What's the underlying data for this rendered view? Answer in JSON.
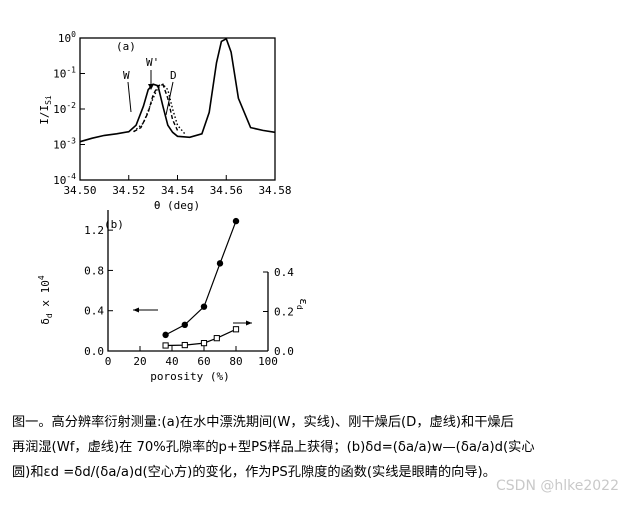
{
  "chart_data": [
    {
      "type": "line",
      "panel_label": "(a)",
      "xlabel": "θ (deg)",
      "ylabel": "I/I_Si",
      "ylabel_main": "I/I",
      "ylabel_sub": "Si",
      "y_scale": "log",
      "xlim": [
        34.5,
        34.58
      ],
      "ylim": [
        0.0001,
        1
      ],
      "x_ticks": [
        "34.50",
        "34.52",
        "34.54",
        "34.56",
        "34.58"
      ],
      "x_tick_values": [
        34.5,
        34.52,
        34.54,
        34.56,
        34.58
      ],
      "y_ticks": [
        {
          "base": "10",
          "exp": "0",
          "value": 1
        },
        {
          "base": "10",
          "exp": "-1",
          "value": 0.1
        },
        {
          "base": "10",
          "exp": "-2",
          "value": 0.01
        },
        {
          "base": "10",
          "exp": "-3",
          "value": 0.001
        },
        {
          "base": "10",
          "exp": "-4",
          "value": 0.0001
        }
      ],
      "annotations": [
        "W",
        "W'",
        "D"
      ],
      "series": [
        {
          "style": "solid",
          "x": [
            34.5,
            34.505,
            34.51,
            34.515,
            34.52,
            34.523,
            34.526,
            34.528,
            34.53,
            34.532,
            34.534,
            34.536,
            34.538,
            34.54,
            34.545,
            34.55,
            34.553,
            34.556,
            34.558,
            34.56,
            34.562,
            34.565,
            34.57,
            34.575,
            34.58
          ],
          "y": [
            0.0012,
            0.0015,
            0.0018,
            0.002,
            0.0023,
            0.0035,
            0.012,
            0.035,
            0.05,
            0.045,
            0.012,
            0.0035,
            0.0022,
            0.0017,
            0.0016,
            0.002,
            0.008,
            0.2,
            0.8,
            0.95,
            0.4,
            0.02,
            0.003,
            0.0025,
            0.0022
          ]
        },
        {
          "style": "dotted",
          "x": [
            34.522,
            34.526,
            34.53,
            34.532,
            34.534,
            34.536,
            34.538,
            34.54,
            34.543
          ],
          "y": [
            0.0023,
            0.004,
            0.02,
            0.04,
            0.05,
            0.035,
            0.01,
            0.0035,
            0.002
          ]
        },
        {
          "style": "dashed",
          "x": [
            34.522,
            34.525,
            34.528,
            34.53,
            34.532,
            34.534,
            34.536,
            34.538,
            34.54
          ],
          "y": [
            0.0023,
            0.003,
            0.008,
            0.025,
            0.045,
            0.05,
            0.02,
            0.005,
            0.0025
          ]
        }
      ]
    },
    {
      "type": "scatter",
      "panel_label": "(b)",
      "xlabel": "porosity (%)",
      "ylabel_left": "δ_d x 10^4",
      "ylabel_left_main": "δ",
      "ylabel_left_sub": "d",
      "ylabel_left_mid": " x 10",
      "ylabel_left_exp": "4",
      "ylabel_right": "ε_d",
      "ylabel_right_main": "ε",
      "ylabel_right_sub": "d",
      "xlim": [
        0,
        100
      ],
      "ylim_left": [
        0,
        1.4
      ],
      "ylim_right": [
        0,
        0.42
      ],
      "x_ticks": [
        "0",
        "20",
        "40",
        "60",
        "80",
        "100"
      ],
      "x_tick_values": [
        0,
        20,
        40,
        60,
        80,
        100
      ],
      "y_left_ticks": [
        "0.0",
        "0.4",
        "0.8",
        "1.2"
      ],
      "y_left_tick_values": [
        0.0,
        0.4,
        0.8,
        1.2
      ],
      "y_right_ticks": [
        "0.0",
        "0.2",
        "0.4"
      ],
      "y_right_tick_values": [
        0.0,
        0.2,
        0.4
      ],
      "series": [
        {
          "marker": "filled-circle",
          "axis": "left",
          "x": [
            36,
            48,
            60,
            70,
            80
          ],
          "y": [
            0.16,
            0.26,
            0.44,
            0.87,
            1.29
          ]
        },
        {
          "marker": "open-square",
          "axis": "right",
          "x": [
            36,
            48,
            60,
            68,
            80
          ],
          "y": [
            0.028,
            0.03,
            0.04,
            0.065,
            0.11
          ]
        }
      ]
    }
  ],
  "caption": {
    "line1": "图一。高分辨率衍射测量:(a)在水中漂洗期间(W，实线)、刚干燥后(D，虚线)和干燥后",
    "line2": "再润湿(Wf，虚线)在 70%孔隙率的p+型PS样品上获得；(b)δd=(δa/a)w—(δa/a)d(实心",
    "line3": "圆)和εd =δd/(δa/a)d(空心方)的变化，作为PS孔隙度的函数(实线是眼睛的向导)。"
  },
  "watermark": "CSDN @hlke2022"
}
